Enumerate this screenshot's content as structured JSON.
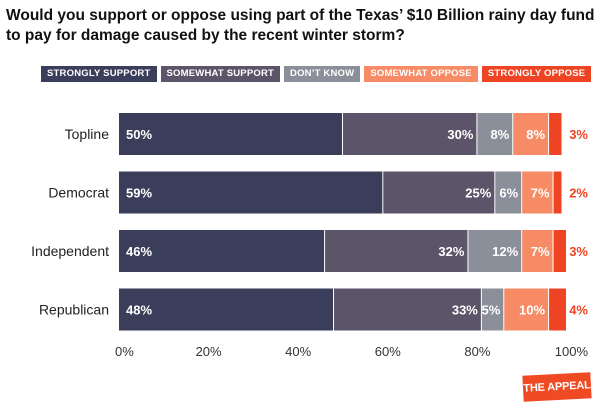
{
  "title": "Would you support or oppose using part of the Texas’ $10 Billion rainy day fund to pay for damage caused by the recent winter storm?",
  "logo_text": "THE APPEAL",
  "chart_data": {
    "type": "bar",
    "orientation": "horizontal",
    "stacked": true,
    "categories": [
      "Topline",
      "Democrat",
      "Independent",
      "Republican"
    ],
    "series": [
      {
        "name": "STRONGLY SUPPORT",
        "color": "#3b3e5b",
        "values": [
          50,
          59,
          46,
          48
        ]
      },
      {
        "name": "SOMEWHAT SUPPORT",
        "color": "#5c5468",
        "values": [
          30,
          25,
          32,
          33
        ]
      },
      {
        "name": "DON’T KNOW",
        "color": "#8b8f99",
        "values": [
          8,
          6,
          12,
          5
        ]
      },
      {
        "name": "SOMEWHAT OPPOSE",
        "color": "#f68b66",
        "values": [
          8,
          7,
          7,
          10
        ]
      },
      {
        "name": "STRONGLY OPPOSE",
        "color": "#ee4423",
        "values": [
          3,
          2,
          3,
          4
        ]
      }
    ],
    "xlim": [
      0,
      100
    ],
    "x_ticks": [
      "0%",
      "20%",
      "40%",
      "60%",
      "80%",
      "100%"
    ],
    "legend_position": "top",
    "grid": false
  }
}
